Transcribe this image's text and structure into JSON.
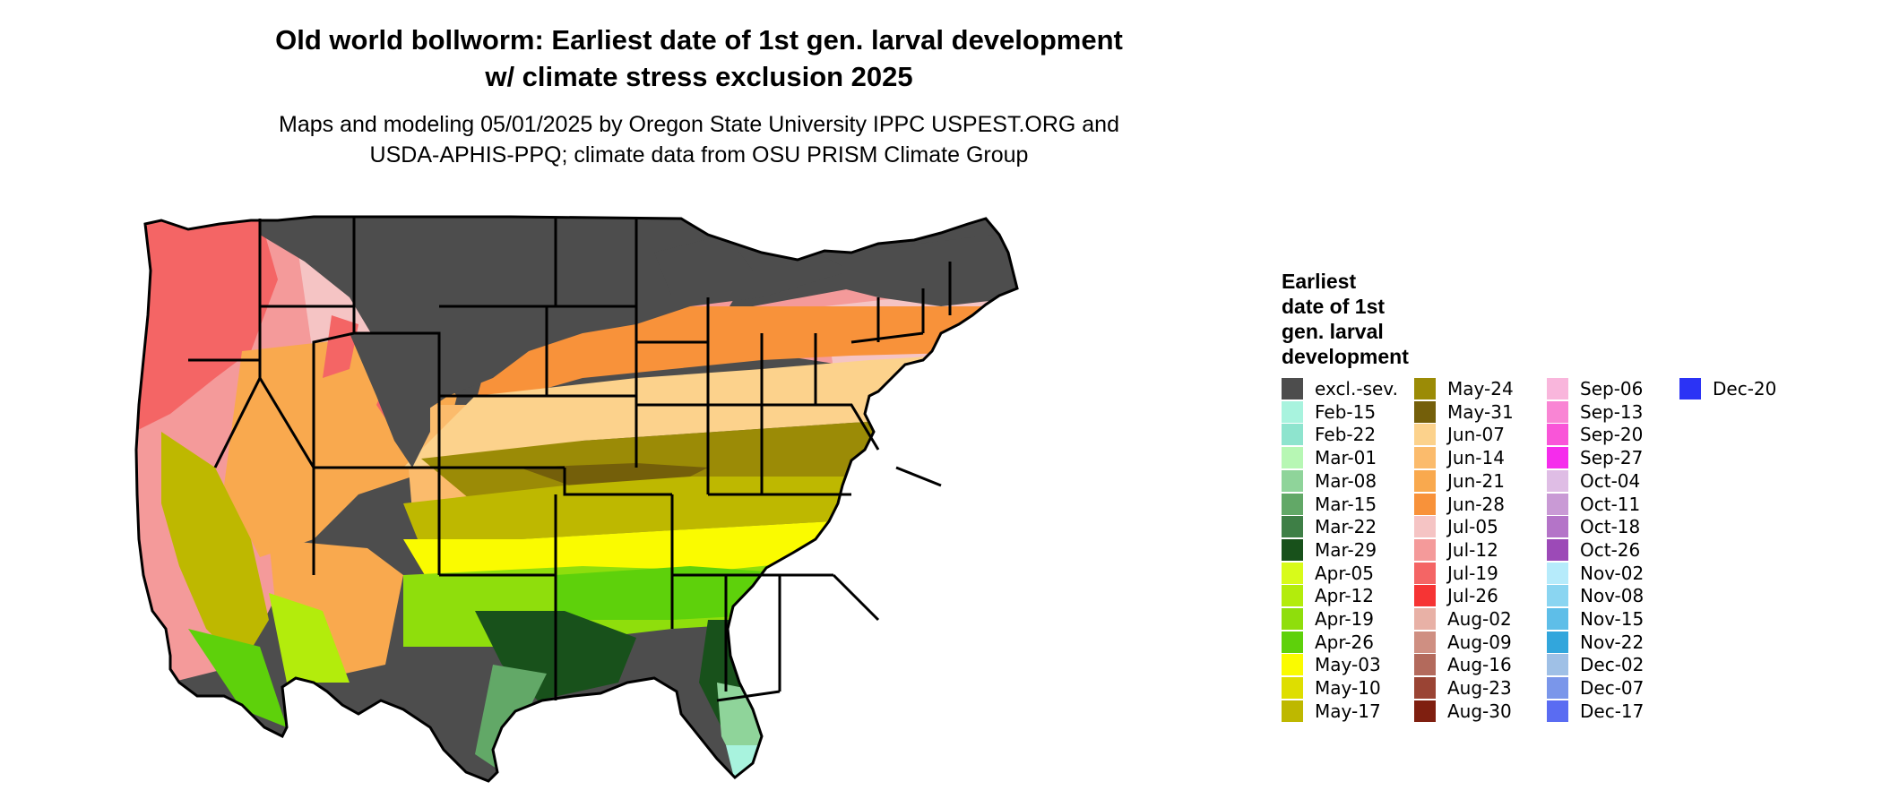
{
  "title_line1": "Old world bollworm: Earliest date of 1st gen. larval development",
  "title_line2": "w/ climate stress exclusion 2025",
  "subtitle_line1": "Maps and modeling 05/01/2025 by Oregon State University IPPC USPEST.ORG and",
  "subtitle_line2": "USDA-APHIS-PPQ; climate data from OSU PRISM Climate Group",
  "legend": {
    "title": "Earliest\ndate of 1st\ngen. larval\ndevelopment",
    "items": [
      {
        "label": "excl.-sev.",
        "color": "#4d4d4d"
      },
      {
        "label": "Feb-15",
        "color": "#a8f3de"
      },
      {
        "label": "Feb-22",
        "color": "#8ee4ce"
      },
      {
        "label": "Mar-01",
        "color": "#b7f7b4"
      },
      {
        "label": "Mar-08",
        "color": "#8fd49a"
      },
      {
        "label": "Mar-15",
        "color": "#62a867"
      },
      {
        "label": "Mar-22",
        "color": "#3e7f46"
      },
      {
        "label": "Mar-29",
        "color": "#18511b"
      },
      {
        "label": "Apr-05",
        "color": "#d8fb1a"
      },
      {
        "label": "Apr-12",
        "color": "#b3ec0c"
      },
      {
        "label": "Apr-19",
        "color": "#8fde0c"
      },
      {
        "label": "Apr-26",
        "color": "#5ed10b"
      },
      {
        "label": "May-03",
        "color": "#fafb00"
      },
      {
        "label": "May-10",
        "color": "#dede00"
      },
      {
        "label": "May-17",
        "color": "#beb800"
      },
      {
        "label": "May-24",
        "color": "#9b8b06"
      },
      {
        "label": "May-31",
        "color": "#745f0a"
      },
      {
        "label": "Jun-07",
        "color": "#fcd28c"
      },
      {
        "label": "Jun-14",
        "color": "#fbbb6c"
      },
      {
        "label": "Jun-21",
        "color": "#f9a94e"
      },
      {
        "label": "Jun-28",
        "color": "#f8923a"
      },
      {
        "label": "Jul-05",
        "color": "#f5c4c4"
      },
      {
        "label": "Jul-12",
        "color": "#f49a9a"
      },
      {
        "label": "Jul-19",
        "color": "#f46565"
      },
      {
        "label": "Jul-26",
        "color": "#f63434"
      },
      {
        "label": "Aug-02",
        "color": "#e8b1a6"
      },
      {
        "label": "Aug-09",
        "color": "#cf8f82"
      },
      {
        "label": "Aug-16",
        "color": "#b36a5c"
      },
      {
        "label": "Aug-23",
        "color": "#9a4434"
      },
      {
        "label": "Aug-30",
        "color": "#7f1f10"
      },
      {
        "label": "Sep-06",
        "color": "#f9b6dc"
      },
      {
        "label": "Sep-13",
        "color": "#f985d4"
      },
      {
        "label": "Sep-20",
        "color": "#f955d8"
      },
      {
        "label": "Sep-27",
        "color": "#f52cec"
      },
      {
        "label": "Oct-04",
        "color": "#dfbde5"
      },
      {
        "label": "Oct-11",
        "color": "#c99ad5"
      },
      {
        "label": "Oct-18",
        "color": "#b474c8"
      },
      {
        "label": "Oct-26",
        "color": "#9c4ab7"
      },
      {
        "label": "Nov-02",
        "color": "#b6ebfb"
      },
      {
        "label": "Nov-08",
        "color": "#8ad5f1"
      },
      {
        "label": "Nov-15",
        "color": "#5ebee8"
      },
      {
        "label": "Nov-22",
        "color": "#32a6dc"
      },
      {
        "label": "Dec-02",
        "color": "#9fc0e6"
      },
      {
        "label": "Dec-07",
        "color": "#7a96ea"
      },
      {
        "label": "Dec-17",
        "color": "#5a6cf2"
      },
      {
        "label": "Dec-20",
        "color": "#2b33f5"
      }
    ]
  }
}
